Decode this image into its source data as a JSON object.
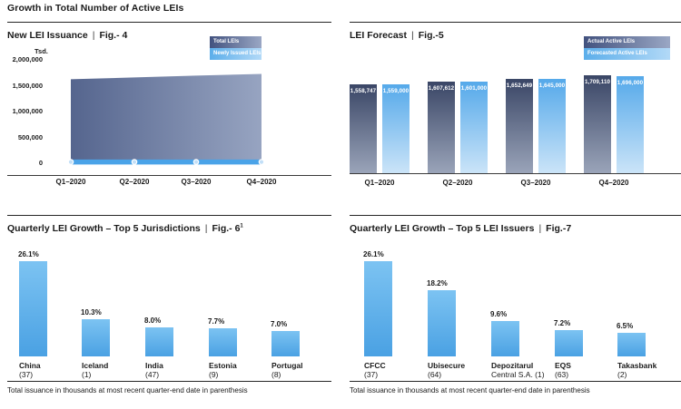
{
  "page": {
    "title": "Growth in Total Number of Active LEIs",
    "separator": "|"
  },
  "colors": {
    "dark_navy": "#3a4666",
    "steel_blue": "#97a4c1",
    "light_blue": "#4aa1e3",
    "pale_blue": "#cbe4f8",
    "text": "#1a1a1a",
    "rule": "#262626"
  },
  "chart_data": [
    {
      "id": "fig4",
      "type": "area",
      "title": "New LEI Issuance",
      "figure": "Fig.- 4",
      "ylabel": "Tsd.",
      "categories": [
        "Q1–2020",
        "Q2–2020",
        "Q3–2020",
        "Q4–2020"
      ],
      "series": [
        {
          "name": "Total LEIs",
          "values": [
            1630000,
            1665000,
            1700000,
            1735000
          ]
        },
        {
          "name": "Newly Issued LEIs",
          "values": [
            25000,
            25000,
            25000,
            25000
          ]
        }
      ],
      "yticks": [
        0,
        500000,
        1000000,
        1500000,
        2000000
      ],
      "ytick_labels": [
        "0",
        "500,000",
        "1,000,000",
        "1,500,000",
        "2,000,000"
      ],
      "ylim": [
        0,
        2000000
      ],
      "legend": [
        "Total LEIs",
        "Newly Issued LEIs"
      ],
      "legend_position": "top-right",
      "grid": false
    },
    {
      "id": "fig5",
      "type": "bar",
      "title": "LEI Forecast",
      "figure": "Fig.-5",
      "categories": [
        "Q1–2020",
        "Q2–2020",
        "Q3–2020",
        "Q4–2020"
      ],
      "series": [
        {
          "name": "Actual Active LEIs",
          "values": [
            1558747,
            1607612,
            1652649,
            1709110
          ],
          "labels": [
            "1,558,747",
            "1,607,612",
            "1,652,649",
            "1,709,110"
          ]
        },
        {
          "name": "Forecasted Active LEIs",
          "values": [
            1559000,
            1601000,
            1645000,
            1696000
          ],
          "labels": [
            "1,559,000",
            "1,601,000",
            "1,645,000",
            "1,696,000"
          ]
        }
      ],
      "legend": [
        "Actual Active LEIs",
        "Forecasted Active LEIs"
      ],
      "legend_position": "top-right",
      "value_labels_inside_bars": true
    },
    {
      "id": "fig6",
      "type": "bar",
      "title": "Quarterly LEI Growth – Top 5 Jurisdictions",
      "figure": "Fig.- 6",
      "figure_superscript": "1",
      "categories": [
        "China",
        "Iceland",
        "India",
        "Estonia",
        "Portugal"
      ],
      "category_lines": [
        [
          "China",
          "(37)"
        ],
        [
          "Iceland",
          "(1)"
        ],
        [
          "India",
          "(47)"
        ],
        [
          "Estonia",
          "(9)"
        ],
        [
          "Portugal",
          "(8)"
        ]
      ],
      "values": [
        26.1,
        10.3,
        8.0,
        7.7,
        7.0
      ],
      "value_labels": [
        "26.1%",
        "10.3%",
        "8.0%",
        "7.7%",
        "7.0%"
      ],
      "unit": "%",
      "footnote": "Total issuance in thousands at most recent quarter-end date in parenthesis"
    },
    {
      "id": "fig7",
      "type": "bar",
      "title": "Quarterly LEI Growth – Top 5 LEI Issuers",
      "figure": "Fig.-7",
      "categories": [
        "CFCC",
        "Ubisecure",
        "Depozitarul Central S.A.",
        "EQS",
        "Takasbank"
      ],
      "category_lines": [
        [
          "CFCC",
          "(37)"
        ],
        [
          "Ubisecure",
          "(64)"
        ],
        [
          "Depozitarul",
          "Central S.A. (1)"
        ],
        [
          "EQS",
          "(63)"
        ],
        [
          "Takasbank",
          "(2)"
        ]
      ],
      "values": [
        26.1,
        18.2,
        9.6,
        7.2,
        6.5
      ],
      "value_labels": [
        "26.1%",
        "18.2%",
        "9.6%",
        "7.2%",
        "6.5%"
      ],
      "unit": "%",
      "footnote": "Total issuance in thousands at most recent quarter-end date in parenthesis"
    }
  ]
}
